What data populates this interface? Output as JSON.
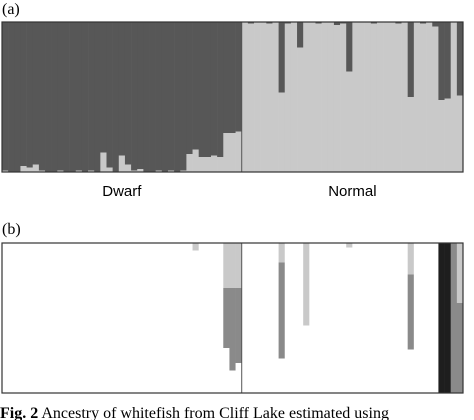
{
  "chart_data": [
    {
      "type": "bar",
      "panel_label": "(a)",
      "ylim": [
        0,
        1
      ],
      "groups": [
        {
          "label": "Dwarf",
          "series": [
            {
              "color": "#c9c9c9",
              "values": [
                0.01,
                0,
                0,
                0.04,
                0.03,
                0.05,
                0.01,
                0,
                0,
                0.01,
                0,
                0,
                0.01,
                0,
                0.01,
                0,
                0.13,
                0.03,
                0,
                0.11,
                0.05,
                0.01,
                0.02,
                0,
                0,
                0.01,
                0,
                0.01,
                0,
                0.01,
                0.12,
                0.15,
                0.1,
                0.1,
                0.11,
                0.1,
                0.26,
                0.26,
                0.27
              ]
            },
            {
              "color": "#575757",
              "values": [
                0.99,
                1,
                1,
                0.96,
                0.97,
                0.95,
                0.99,
                1,
                1,
                0.99,
                1,
                1,
                0.99,
                1,
                0.99,
                1,
                0.87,
                0.97,
                1,
                0.89,
                0.95,
                0.99,
                0.98,
                1,
                1,
                0.99,
                1,
                0.99,
                1,
                0.99,
                0.88,
                0.85,
                0.9,
                0.9,
                0.89,
                0.9,
                0.74,
                0.74,
                0.73
              ]
            }
          ]
        },
        {
          "label": "Normal",
          "series": [
            {
              "color": "#c9c9c9",
              "values": [
                1,
                0.99,
                1,
                1,
                0.99,
                1,
                0.53,
                0.99,
                1,
                0.83,
                1,
                1,
                0.99,
                1,
                1,
                0.98,
                0.99,
                0.67,
                1,
                1,
                1,
                0.99,
                1,
                1,
                1,
                0.99,
                1,
                0.5,
                1,
                0.99,
                1,
                0.97,
                0.48,
                0.49,
                1,
                0.51
              ]
            },
            {
              "color": "#575757",
              "values": [
                0,
                0.01,
                0,
                0,
                0.01,
                0,
                0.47,
                0.01,
                0,
                0.17,
                0,
                0,
                0.01,
                0,
                0,
                0.02,
                0.01,
                0.33,
                0,
                0,
                0,
                0.01,
                0,
                0,
                0,
                0.01,
                0,
                0.5,
                0,
                0.01,
                0,
                0.03,
                0.52,
                0.51,
                0,
                0.49
              ]
            }
          ]
        }
      ]
    },
    {
      "type": "bar",
      "panel_label": "(b)",
      "ylim": [
        0,
        1
      ],
      "groups": [
        {
          "series": [
            {
              "color": "#ffffff",
              "values": [
                1,
                1,
                1,
                1,
                1,
                1,
                1,
                1,
                1,
                1,
                1,
                1,
                1,
                1,
                1,
                1,
                1,
                1,
                1,
                1,
                1,
                1,
                1,
                1,
                1,
                1,
                1,
                1,
                1,
                1,
                1,
                0.95,
                1,
                1,
                1,
                1,
                0.3,
                0.15,
                0.2
              ]
            },
            {
              "color": "#8a8a8a",
              "values": [
                0,
                0,
                0,
                0,
                0,
                0,
                0,
                0,
                0,
                0,
                0,
                0,
                0,
                0,
                0,
                0,
                0,
                0,
                0,
                0,
                0,
                0,
                0,
                0,
                0,
                0,
                0,
                0,
                0,
                0,
                0,
                0,
                0,
                0,
                0,
                0,
                0.4,
                0.55,
                0.5
              ]
            },
            {
              "color": "#c9c9c9",
              "values": [
                0,
                0,
                0,
                0,
                0,
                0,
                0,
                0,
                0,
                0,
                0,
                0,
                0,
                0,
                0,
                0,
                0,
                0,
                0,
                0,
                0,
                0,
                0,
                0,
                0,
                0,
                0,
                0,
                0,
                0,
                0,
                0.05,
                0,
                0,
                0,
                0,
                0.3,
                0.3,
                0.3
              ]
            },
            {
              "color": "#1e1e1e",
              "values": [
                0,
                0,
                0,
                0,
                0,
                0,
                0,
                0,
                0,
                0,
                0,
                0,
                0,
                0,
                0,
                0,
                0,
                0,
                0,
                0,
                0,
                0,
                0,
                0,
                0,
                0,
                0,
                0,
                0,
                0,
                0,
                0,
                0,
                0,
                0,
                0,
                0,
                0,
                0
              ]
            }
          ]
        },
        {
          "series": [
            {
              "color": "#ffffff",
              "values": [
                1,
                1,
                1,
                1,
                1,
                1,
                0.23,
                1,
                1,
                1,
                0.45,
                1,
                1,
                1,
                1,
                1,
                1,
                0.97,
                1,
                1,
                1,
                1,
                1,
                1,
                1,
                1,
                1,
                0.29,
                1,
                1,
                1,
                1,
                0,
                0,
                0,
                0
              ]
            },
            {
              "color": "#8a8a8a",
              "values": [
                0,
                0,
                0,
                0,
                0,
                0,
                0.64,
                0,
                0,
                0,
                0,
                0,
                0,
                0,
                0,
                0,
                0,
                0,
                0,
                0,
                0,
                0,
                0,
                0,
                0,
                0,
                0,
                0.5,
                0,
                0,
                0,
                0,
                0,
                0,
                1,
                0.6
              ]
            },
            {
              "color": "#c9c9c9",
              "values": [
                0,
                0,
                0,
                0,
                0,
                0,
                0.13,
                0,
                0,
                0,
                0.55,
                0,
                0,
                0,
                0,
                0,
                0,
                0.03,
                0,
                0,
                0,
                0,
                0,
                0,
                0,
                0,
                0,
                0.21,
                0,
                0,
                0,
                0,
                0,
                0,
                0,
                0.4
              ]
            },
            {
              "color": "#1e1e1e",
              "values": [
                0,
                0,
                0,
                0,
                0,
                0,
                0,
                0,
                0,
                0,
                0,
                0,
                0,
                0,
                0,
                0,
                0,
                0,
                0,
                0,
                0,
                0,
                0,
                0,
                0,
                0,
                0,
                0,
                0,
                0,
                0,
                0,
                1,
                1,
                0,
                0
              ]
            }
          ]
        }
      ]
    }
  ],
  "caption": {
    "label": "Fig. 2",
    "text": "Ancestry of whitefish from Cliff Lake estimated using"
  }
}
